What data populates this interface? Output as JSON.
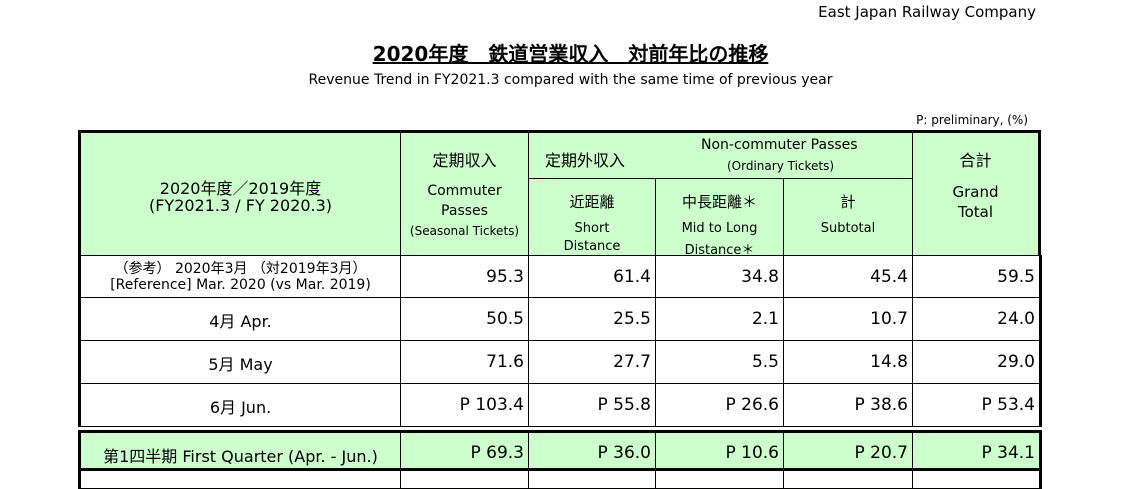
{
  "header": {
    "company": "East Japan Railway Company",
    "title": "2020年度　鉄道営業収入　対前年比の推移",
    "subtitle": "Revenue Trend in FY2021.3 compared with the same time of previous year",
    "note": "P: preliminary, (%)"
  },
  "table": {
    "head": {
      "period": [
        "2020年度／2019年度",
        "(FY2021.3 / FY 2020.3)"
      ],
      "commuter": [
        "定期収入",
        "Commuter",
        "Passes",
        "(Seasonal Tickets)"
      ],
      "non_commuter": [
        "定期外収入",
        "Non-commuter Passes",
        "(Ordinary Tickets)"
      ],
      "short": [
        "近距離",
        "Short",
        "Distance"
      ],
      "mid_long": [
        "中長距離＊",
        "Mid to Long",
        "Distance＊"
      ],
      "subtotal": [
        "計",
        "Subtotal"
      ],
      "total": [
        "合計",
        "Grand",
        "Total"
      ]
    },
    "rows": [
      {
        "label": [
          "（参考） 2020年3月 （対2019年3月）",
          "[Reference] Mar. 2020 (vs Mar. 2019)"
        ],
        "cells": [
          "95.3",
          "61.4",
          "34.8",
          "45.4",
          "59.5"
        ]
      },
      {
        "label": [
          "4月 Apr."
        ],
        "cells": [
          "50.5",
          "25.5",
          "2.1",
          "10.7",
          "24.0"
        ]
      },
      {
        "label": [
          "5月 May"
        ],
        "cells": [
          "71.6",
          "27.7",
          "5.5",
          "14.8",
          "29.0"
        ]
      },
      {
        "label": [
          "6月 Jun."
        ],
        "cells": [
          "P 103.4",
          "P 55.8",
          "P 26.6",
          "P 38.6",
          "P 53.4"
        ]
      },
      {
        "label": [
          "第1四半期 First Quarter (Apr. - Jun.)"
        ],
        "cells": [
          "P 69.3",
          "P 36.0",
          "P 10.6",
          "P 20.7",
          "P 34.1"
        ]
      }
    ]
  }
}
